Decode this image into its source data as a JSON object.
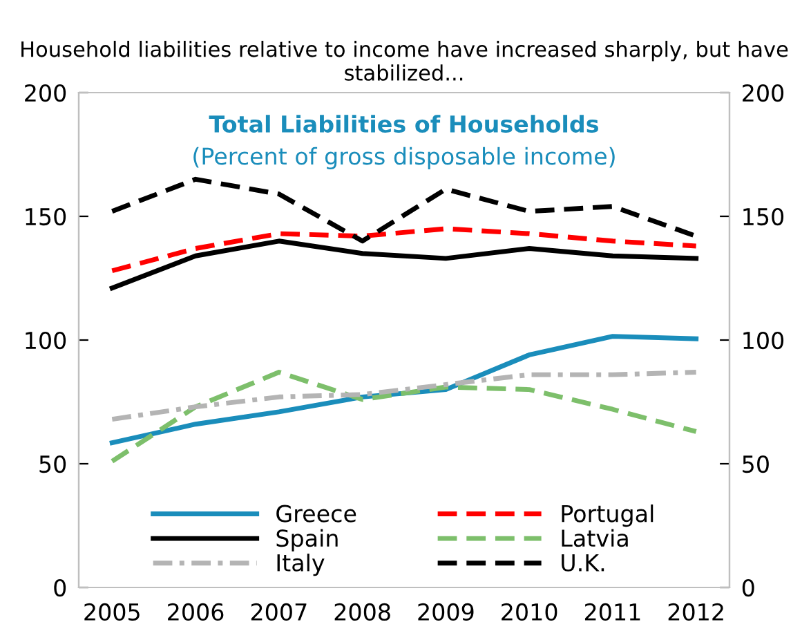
{
  "chart_data": {
    "type": "line",
    "title": "Household liabilities relative to income have increased sharply, but have stabilized...",
    "annotations": [
      "Total Liabilities of Households",
      "(Percent of gross disposable income)"
    ],
    "categories": [
      "2005",
      "2006",
      "2007",
      "2008",
      "2009",
      "2010",
      "2011",
      "2012"
    ],
    "series": [
      {
        "name": "Greece",
        "color": "#1a8dbb",
        "line_style": "solid",
        "values": [
          58.5,
          66,
          71,
          77,
          80,
          94,
          101.5,
          100.5
        ]
      },
      {
        "name": "Portugal",
        "color": "#ff0000",
        "line_style": "dashed",
        "values": [
          128,
          137,
          143,
          142,
          145,
          143,
          140,
          138
        ]
      },
      {
        "name": "Spain",
        "color": "#000000",
        "line_style": "solid",
        "values": [
          121,
          134,
          140,
          135,
          133,
          137,
          134,
          133
        ]
      },
      {
        "name": "Latvia",
        "color": "#7dbf6b",
        "line_style": "dashed",
        "values": [
          51,
          73,
          87,
          76,
          81,
          80,
          72,
          63
        ]
      },
      {
        "name": "Italy",
        "color": "#b4b4b4",
        "line_style": "dashdot",
        "values": [
          68,
          73,
          77,
          78,
          82,
          86,
          86,
          87
        ]
      },
      {
        "name": "U.K.",
        "color": "#000000",
        "line_style": "dashed",
        "values": [
          152,
          165,
          159,
          140,
          161,
          152,
          154,
          142
        ]
      }
    ],
    "ylim": [
      0,
      200
    ],
    "yticks": [
      0,
      50,
      100,
      150,
      200
    ],
    "y2lim": [
      0,
      200
    ],
    "y2ticks": [
      0,
      50,
      100,
      150,
      200
    ],
    "legend": "bottom",
    "grid": false,
    "marker": "none"
  }
}
